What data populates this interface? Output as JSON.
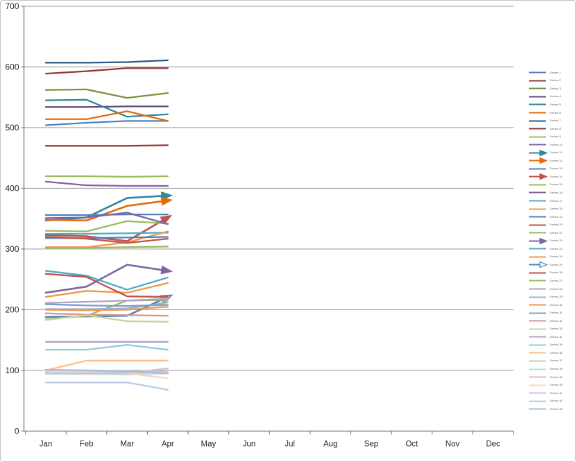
{
  "chart_data": {
    "type": "line",
    "title": "",
    "x_categories": [
      "Jan",
      "Feb",
      "Mar",
      "Apr",
      "May",
      "Jun",
      "Jul",
      "Aug",
      "Sep",
      "Oct",
      "Nov",
      "Dec"
    ],
    "y_axis": {
      "min": 0,
      "max": 700,
      "step": 100,
      "tick_labels": [
        "0",
        "100",
        "200",
        "300",
        "400",
        "500",
        "600",
        "700"
      ]
    },
    "grid": true,
    "legend_position": "right",
    "data_months_present": [
      "Jan",
      "Feb",
      "Mar",
      "Apr"
    ],
    "colors": {
      "grid": "#a6a6a6",
      "axis": "#7f7f7f",
      "label": "#262626"
    },
    "series": [
      {
        "name": "Series 1",
        "color": "#4F81BD",
        "values": [
          504,
          508,
          511,
          511
        ],
        "arrow": null
      },
      {
        "name": "Series 2",
        "color": "#943634",
        "values": [
          589,
          593,
          598,
          598
        ],
        "arrow": null
      },
      {
        "name": "Series 3",
        "color": "#77933C",
        "values": [
          562,
          563,
          549,
          557
        ],
        "arrow": null
      },
      {
        "name": "Series 4",
        "color": "#604A7B",
        "values": [
          534,
          534,
          535,
          535
        ],
        "arrow": null
      },
      {
        "name": "Series 5",
        "color": "#31859C",
        "values": [
          545,
          546,
          518,
          522
        ],
        "arrow": null
      },
      {
        "name": "Series 6",
        "color": "#E36C0A",
        "values": [
          514,
          514,
          527,
          511
        ],
        "arrow": null
      },
      {
        "name": "Series 7",
        "color": "#2C5985",
        "values": [
          607,
          607,
          608,
          611
        ],
        "arrow": null
      },
      {
        "name": "Series 8",
        "color": "#943634",
        "values": [
          470,
          470,
          470,
          471
        ],
        "arrow": null
      },
      {
        "name": "Series 9",
        "color": "#9BBB59",
        "values": [
          420,
          420,
          419,
          420
        ],
        "arrow": null
      },
      {
        "name": "Series 10",
        "color": "#8064A2",
        "values": [
          411,
          405,
          404,
          404
        ],
        "arrow": null
      },
      {
        "name": "Series 11",
        "color": "#31859C",
        "values": [
          347,
          352,
          384,
          388
        ],
        "arrow": "solid"
      },
      {
        "name": "Series 12",
        "color": "#E36C0A",
        "values": [
          348,
          347,
          371,
          380
        ],
        "arrow": "solid"
      },
      {
        "name": "Series 13",
        "color": "#4F81BD",
        "values": [
          356,
          356,
          357,
          357
        ],
        "arrow": null
      },
      {
        "name": "Series 14",
        "color": "#C0504D",
        "values": [
          323,
          321,
          313,
          352
        ],
        "arrow": "solid"
      },
      {
        "name": "Series 15",
        "color": "#9BBB59",
        "values": [
          330,
          329,
          346,
          342
        ],
        "arrow": null
      },
      {
        "name": "Series 16",
        "color": "#8064A2",
        "values": [
          351,
          352,
          360,
          341
        ],
        "arrow": null
      },
      {
        "name": "Series 17",
        "color": "#4BACC6",
        "values": [
          325,
          325,
          326,
          327
        ],
        "arrow": null
      },
      {
        "name": "Series 18",
        "color": "#F79646",
        "values": [
          303,
          303,
          311,
          329
        ],
        "arrow": null
      },
      {
        "name": "Series 19",
        "color": "#4F81BD",
        "values": [
          318,
          318,
          319,
          320
        ],
        "arrow": null
      },
      {
        "name": "Series 20",
        "color": "#C0504D",
        "values": [
          320,
          317,
          310,
          317
        ],
        "arrow": null
      },
      {
        "name": "Series 21",
        "color": "#9BBB59",
        "values": [
          302,
          302,
          303,
          304
        ],
        "arrow": null
      },
      {
        "name": "Series 22",
        "color": "#8064A2",
        "values": [
          228,
          238,
          274,
          264
        ],
        "arrow": "solid"
      },
      {
        "name": "Series 23",
        "color": "#4BACC6",
        "values": [
          264,
          256,
          233,
          253
        ],
        "arrow": null
      },
      {
        "name": "Series 24",
        "color": "#F79646",
        "values": [
          221,
          231,
          228,
          244
        ],
        "arrow": null
      },
      {
        "name": "Series 25",
        "color": "#4F81BD",
        "values": [
          188,
          189,
          190,
          221
        ],
        "arrow": "outline"
      },
      {
        "name": "Series 26",
        "color": "#C0504D",
        "values": [
          259,
          254,
          222,
          221
        ],
        "arrow": null
      },
      {
        "name": "Series 27",
        "color": "#9BBB59",
        "values": [
          184,
          190,
          215,
          216
        ],
        "arrow": null
      },
      {
        "name": "Series 28",
        "color": "#B3A2C7",
        "values": [
          211,
          213,
          215,
          218
        ],
        "arrow": null
      },
      {
        "name": "Series 29",
        "color": "#95B3D7",
        "values": [
          201,
          201,
          202,
          212
        ],
        "arrow": null
      },
      {
        "name": "Series 30",
        "color": "#F79646",
        "values": [
          200,
          199,
          200,
          205
        ],
        "arrow": null
      },
      {
        "name": "Series 31",
        "color": "#7F9DC9",
        "values": [
          209,
          207,
          206,
          208
        ],
        "arrow": null
      },
      {
        "name": "Series 32",
        "color": "#D99694",
        "values": [
          194,
          192,
          191,
          190
        ],
        "arrow": null
      },
      {
        "name": "Series 33",
        "color": "#C3D69B",
        "values": [
          183,
          191,
          181,
          180
        ],
        "arrow": null
      },
      {
        "name": "Series 34",
        "color": "#B3A2C7",
        "values": [
          147,
          147,
          147,
          147
        ],
        "arrow": null
      },
      {
        "name": "Series 35",
        "color": "#92CDDC",
        "values": [
          134,
          134,
          142,
          134
        ],
        "arrow": null
      },
      {
        "name": "Series 36",
        "color": "#FAC090",
        "values": [
          100,
          116,
          116,
          116
        ],
        "arrow": null
      },
      {
        "name": "Series 37",
        "color": "#C3D69B",
        "values": [
          97,
          96,
          95,
          96
        ],
        "arrow": null
      },
      {
        "name": "Series 38",
        "color": "#B7DEE8",
        "values": [
          94,
          94,
          93,
          95
        ],
        "arrow": null
      },
      {
        "name": "Series 39",
        "color": "#E6B9B8",
        "values": [
          99,
          98,
          97,
          99
        ],
        "arrow": null
      },
      {
        "name": "Series 40",
        "color": "#FBD5B5",
        "values": [
          98,
          97,
          95,
          87
        ],
        "arrow": null
      },
      {
        "name": "Series 41",
        "color": "#CCC1DA",
        "values": [
          96,
          95,
          96,
          103
        ],
        "arrow": null
      },
      {
        "name": "Series 42",
        "color": "#B8CCE4",
        "values": [
          80,
          80,
          80,
          68
        ],
        "arrow": null
      },
      {
        "name": "Series 43",
        "color": "#A8BFDC",
        "values": [
          101,
          100,
          99,
          95
        ],
        "arrow": null
      }
    ]
  }
}
